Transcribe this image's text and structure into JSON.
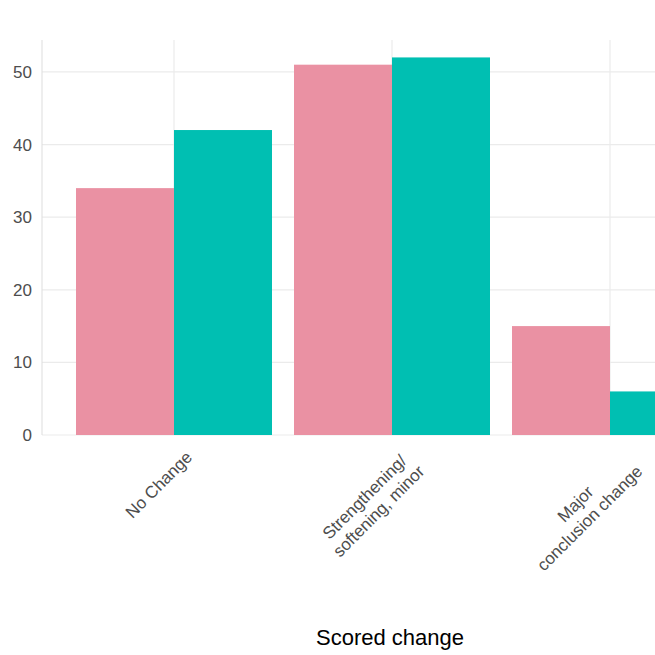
{
  "chart_data": {
    "type": "bar",
    "categories": [
      "No Change",
      "Strengthening/\nsoftening, minor",
      "Major\nconclusion change"
    ],
    "series": [
      {
        "color": "#EA91A3",
        "values": [
          34,
          51,
          15
        ]
      },
      {
        "color": "#00BFB2",
        "values": [
          42,
          52,
          6
        ]
      }
    ],
    "x_label": "Scored change",
    "ylim": [
      0,
      54.4
    ],
    "yticks": [
      0,
      10,
      20,
      30,
      40,
      50
    ],
    "grid": true
  }
}
